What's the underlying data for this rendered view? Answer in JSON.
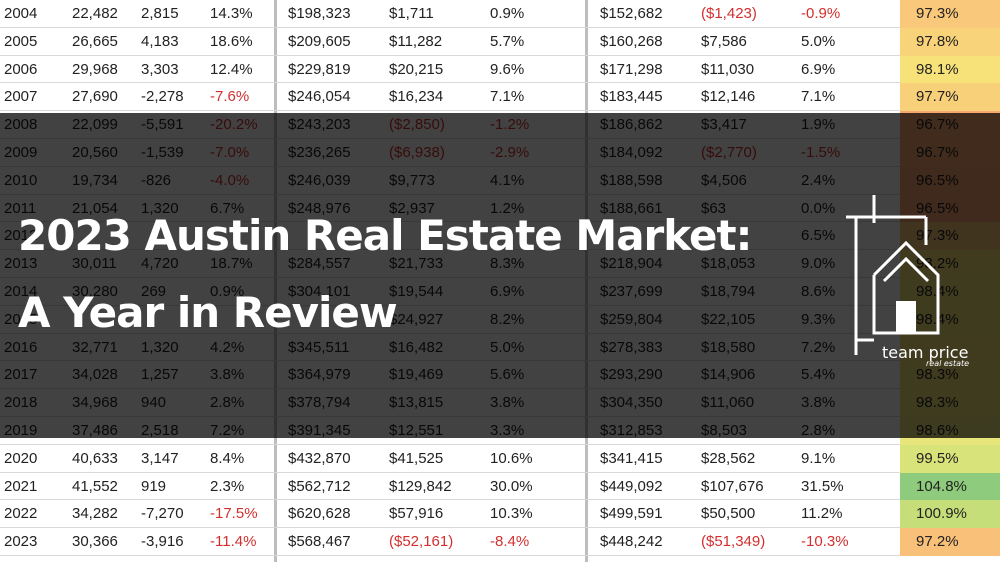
{
  "title": {
    "line1": "2023 Austin Real Estate Market:",
    "line2": "A Year in Review"
  },
  "logo": {
    "name": "team price",
    "tagline": "real estate"
  },
  "colors": {
    "negative": "#d32f2f",
    "ratio_high": "#7ec57c",
    "ratio_mid": "#f7e27a",
    "ratio_low": "#f5a76f"
  },
  "rows": [
    {
      "year": "2004",
      "sales": "22,482",
      "sales_change": "2,815",
      "sales_pct": "14.3%",
      "median": "$198,323",
      "median_change": "$1,711",
      "median_pct": "0.9%",
      "avg": "$152,682",
      "avg_change": "($1,423)",
      "avg_pct": "-0.9%",
      "ratio": "97.3%",
      "ratio_color": "#f9c87a"
    },
    {
      "year": "2005",
      "sales": "26,665",
      "sales_change": "4,183",
      "sales_pct": "18.6%",
      "median": "$209,605",
      "median_change": "$11,282",
      "median_pct": "5.7%",
      "avg": "$160,268",
      "avg_change": "$7,586",
      "avg_pct": "5.0%",
      "ratio": "97.8%",
      "ratio_color": "#f9d37a"
    },
    {
      "year": "2006",
      "sales": "29,968",
      "sales_change": "3,303",
      "sales_pct": "12.4%",
      "median": "$229,819",
      "median_change": "$20,215",
      "median_pct": "9.6%",
      "avg": "$171,298",
      "avg_change": "$11,030",
      "avg_pct": "6.9%",
      "ratio": "98.1%",
      "ratio_color": "#f7e27a"
    },
    {
      "year": "2007",
      "sales": "27,690",
      "sales_change": "-2,278",
      "sales_pct": "-7.6%",
      "median": "$246,054",
      "median_change": "$16,234",
      "median_pct": "7.1%",
      "avg": "$183,445",
      "avg_change": "$12,146",
      "avg_pct": "7.1%",
      "ratio": "97.7%",
      "ratio_color": "#f9d07a"
    },
    {
      "year": "2008",
      "sales": "22,099",
      "sales_change": "-5,591",
      "sales_pct": "-20.2%",
      "median": "$243,203",
      "median_change": "($2,850)",
      "median_pct": "-1.2%",
      "avg": "$186,862",
      "avg_change": "$3,417",
      "avg_pct": "1.9%",
      "ratio": "96.7%",
      "ratio_color": "#f5a76f"
    },
    {
      "year": "2009",
      "sales": "20,560",
      "sales_change": "-1,539",
      "sales_pct": "-7.0%",
      "median": "$236,265",
      "median_change": "($6,938)",
      "median_pct": "-2.9%",
      "avg": "$184,092",
      "avg_change": "($2,770)",
      "avg_pct": "-1.5%",
      "ratio": "96.7%",
      "ratio_color": "#f5a76f"
    },
    {
      "year": "2010",
      "sales": "19,734",
      "sales_change": "-826",
      "sales_pct": "-4.0%",
      "median": "$246,039",
      "median_change": "$9,773",
      "median_pct": "4.1%",
      "avg": "$188,598",
      "avg_change": "$4,506",
      "avg_pct": "2.4%",
      "ratio": "96.5%",
      "ratio_color": "#f5a06f"
    },
    {
      "year": "2011",
      "sales": "21,054",
      "sales_change": "1,320",
      "sales_pct": "6.7%",
      "median": "$248,976",
      "median_change": "$2,937",
      "median_pct": "1.2%",
      "avg": "$188,661",
      "avg_change": "$63",
      "avg_pct": "0.0%",
      "ratio": "96.5%",
      "ratio_color": "#f5a06f"
    },
    {
      "year": "2012",
      "sales": "",
      "sales_change": "",
      "sales_pct": "",
      "median": "",
      "median_change": "",
      "median_pct": "",
      "avg": "",
      "avg_change": "",
      "avg_pct": "6.5%",
      "ratio": "97.3%",
      "ratio_color": "#f9c87a"
    },
    {
      "year": "2013",
      "sales": "30,011",
      "sales_change": "4,720",
      "sales_pct": "18.7%",
      "median": "$284,557",
      "median_change": "$21,733",
      "median_pct": "8.3%",
      "avg": "$218,904",
      "avg_change": "$18,053",
      "avg_pct": "9.0%",
      "ratio": "98.2%",
      "ratio_color": "#f7e27a"
    },
    {
      "year": "2014",
      "sales": "30,280",
      "sales_change": "269",
      "sales_pct": "0.9%",
      "median": "$304,101",
      "median_change": "$19,544",
      "median_pct": "6.9%",
      "avg": "$237,699",
      "avg_change": "$18,794",
      "avg_pct": "8.6%",
      "ratio": "98.4%",
      "ratio_color": "#efe57a"
    },
    {
      "year": "2015",
      "sales": "",
      "sales_change": "",
      "sales_pct": "",
      "median": "",
      "median_change": "$24,927",
      "median_pct": "8.2%",
      "avg": "$259,804",
      "avg_change": "$22,105",
      "avg_pct": "9.3%",
      "ratio": "98.4%",
      "ratio_color": "#efe57a"
    },
    {
      "year": "2016",
      "sales": "32,771",
      "sales_change": "1,320",
      "sales_pct": "4.2%",
      "median": "$345,511",
      "median_change": "$16,482",
      "median_pct": "5.0%",
      "avg": "$278,383",
      "avg_change": "$18,580",
      "avg_pct": "7.2%",
      "ratio": "",
      "ratio_color": "#f7e27a"
    },
    {
      "year": "2017",
      "sales": "34,028",
      "sales_change": "1,257",
      "sales_pct": "3.8%",
      "median": "$364,979",
      "median_change": "$19,469",
      "median_pct": "5.6%",
      "avg": "$293,290",
      "avg_change": "$14,906",
      "avg_pct": "5.4%",
      "ratio": "98.3%",
      "ratio_color": "#f3e47a"
    },
    {
      "year": "2018",
      "sales": "34,968",
      "sales_change": "940",
      "sales_pct": "2.8%",
      "median": "$378,794",
      "median_change": "$13,815",
      "median_pct": "3.8%",
      "avg": "$304,350",
      "avg_change": "$11,060",
      "avg_pct": "3.8%",
      "ratio": "98.3%",
      "ratio_color": "#f3e47a"
    },
    {
      "year": "2019",
      "sales": "37,486",
      "sales_change": "2,518",
      "sales_pct": "7.2%",
      "median": "$391,345",
      "median_change": "$12,551",
      "median_pct": "3.3%",
      "avg": "$312,853",
      "avg_change": "$8,503",
      "avg_pct": "2.8%",
      "ratio": "98.6%",
      "ratio_color": "#e8e57a"
    },
    {
      "year": "2020",
      "sales": "40,633",
      "sales_change": "3,147",
      "sales_pct": "8.4%",
      "median": "$432,870",
      "median_change": "$41,525",
      "median_pct": "10.6%",
      "avg": "$341,415",
      "avg_change": "$28,562",
      "avg_pct": "9.1%",
      "ratio": "99.5%",
      "ratio_color": "#d8e37a"
    },
    {
      "year": "2021",
      "sales": "41,552",
      "sales_change": "919",
      "sales_pct": "2.3%",
      "median": "$562,712",
      "median_change": "$129,842",
      "median_pct": "30.0%",
      "avg": "$449,092",
      "avg_change": "$107,676",
      "avg_pct": "31.5%",
      "ratio": "104.8%",
      "ratio_color": "#8fcb7c"
    },
    {
      "year": "2022",
      "sales": "34,282",
      "sales_change": "-7,270",
      "sales_pct": "-17.5%",
      "median": "$620,628",
      "median_change": "$57,916",
      "median_pct": "10.3%",
      "avg": "$499,591",
      "avg_change": "$50,500",
      "avg_pct": "11.2%",
      "ratio": "100.9%",
      "ratio_color": "#c6de7a"
    },
    {
      "year": "2023",
      "sales": "30,366",
      "sales_change": "-3,916",
      "sales_pct": "-11.4%",
      "median": "$568,467",
      "median_change": "($52,161)",
      "median_pct": "-8.4%",
      "avg": "$448,242",
      "avg_change": "($51,349)",
      "avg_pct": "-10.3%",
      "ratio": "97.2%",
      "ratio_color": "#f9c07a"
    }
  ]
}
